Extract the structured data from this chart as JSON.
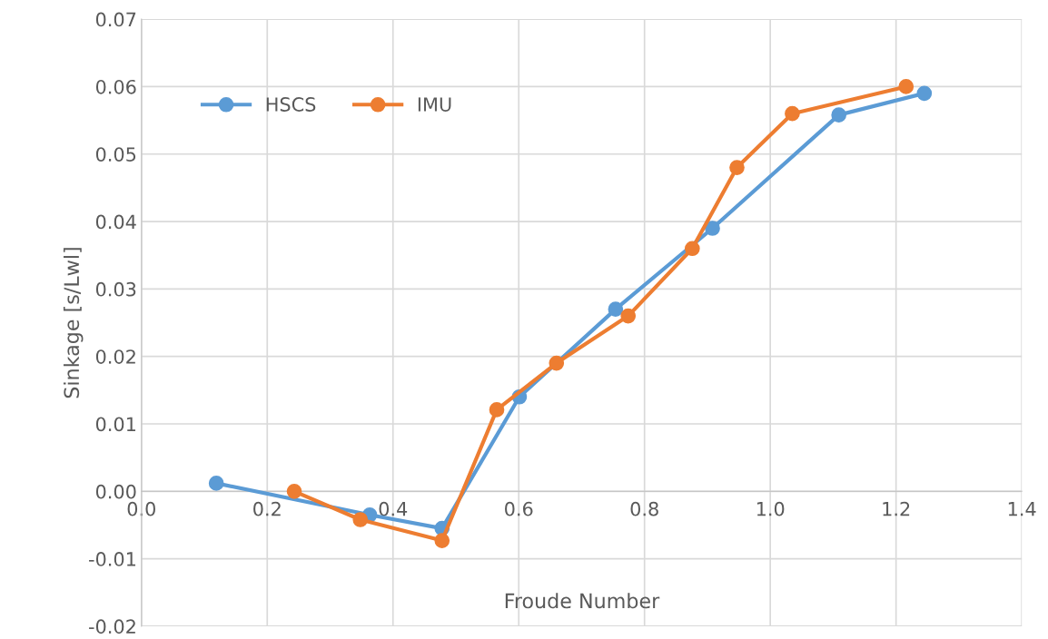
{
  "chart_data": {
    "type": "line",
    "xlabel": "Froude Number",
    "ylabel": "Sinkage [s/Lwl]",
    "xlim": [
      0,
      1.4
    ],
    "ylim": [
      -0.02,
      0.07
    ],
    "xticks": [
      {
        "value": 0,
        "label": "0.0"
      },
      {
        "value": 0.2,
        "label": "0.2"
      },
      {
        "value": 0.4,
        "label": "0.4"
      },
      {
        "value": 0.6,
        "label": "0.6"
      },
      {
        "value": 0.8,
        "label": "0.8"
      },
      {
        "value": 1.0,
        "label": "1.0"
      },
      {
        "value": 1.2,
        "label": "1.2"
      },
      {
        "value": 1.4,
        "label": "1.4"
      }
    ],
    "yticks": [
      {
        "value": -0.02,
        "label": "-0.02"
      },
      {
        "value": -0.01,
        "label": "-0.01"
      },
      {
        "value": 0,
        "label": "0.00"
      },
      {
        "value": 0.01,
        "label": "0.01"
      },
      {
        "value": 0.02,
        "label": "0.02"
      },
      {
        "value": 0.03,
        "label": "0.03"
      },
      {
        "value": 0.04,
        "label": "0.04"
      },
      {
        "value": 0.05,
        "label": "0.05"
      },
      {
        "value": 0.06,
        "label": "0.06"
      },
      {
        "value": 0.07,
        "label": "0.07"
      }
    ],
    "grid": true,
    "legend": "top left",
    "marker": "circle",
    "line_style": "solid",
    "series": [
      {
        "name": "HSCS",
        "color": "#5b9bd5",
        "x": [
          0.119,
          0.363,
          0.478,
          0.601,
          0.754,
          0.908,
          1.109,
          1.245
        ],
        "values": [
          0.0012,
          -0.0035,
          -0.0055,
          0.014,
          0.027,
          0.039,
          0.0558,
          0.059
        ]
      },
      {
        "name": "IMU",
        "color": "#ed7d31",
        "x": [
          0.243,
          0.348,
          0.478,
          0.565,
          0.66,
          0.774,
          0.876,
          0.947,
          1.035,
          1.216
        ],
        "values": [
          0.0,
          -0.0042,
          -0.0073,
          0.0121,
          0.019,
          0.026,
          0.036,
          0.048,
          0.056,
          0.06
        ]
      }
    ]
  }
}
